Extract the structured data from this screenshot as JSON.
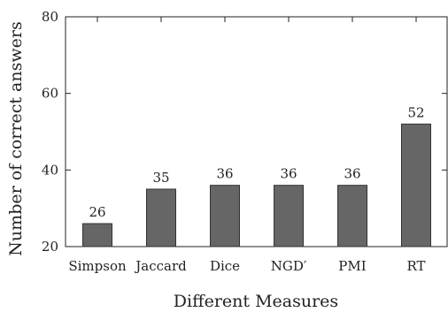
{
  "chart_data": {
    "type": "bar",
    "categories": [
      "Simpson",
      "Jaccard",
      "Dice",
      "NGD′",
      "PMI",
      "RT"
    ],
    "values": [
      26,
      35,
      36,
      36,
      36,
      52
    ],
    "data_labels": [
      "26",
      "35",
      "36",
      "36",
      "36",
      "52"
    ],
    "xlabel": "Different Measures",
    "ylabel": "Number of correct answers",
    "ylim": [
      20,
      80
    ],
    "yticks": [
      20,
      40,
      60,
      80
    ],
    "grid": false,
    "bar_color": "#666666",
    "bar_edge_color": "#333333"
  }
}
